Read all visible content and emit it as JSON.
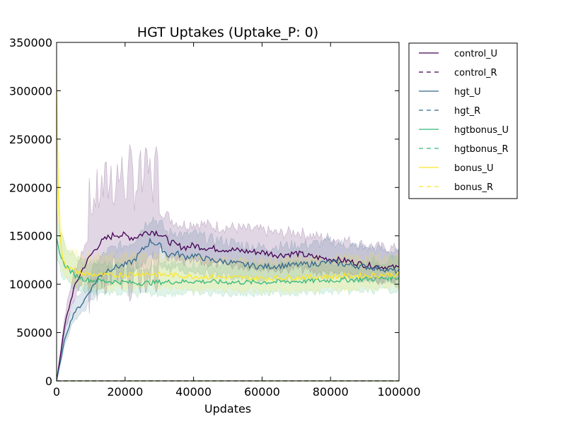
{
  "chart_data": {
    "type": "line",
    "title": "HGT Uptakes (Uptake_P: 0)",
    "xlabel": "Updates",
    "ylabel": "",
    "xlim": [
      0,
      100000
    ],
    "ylim": [
      0,
      350000
    ],
    "xticks": [
      0,
      20000,
      40000,
      60000,
      80000,
      100000
    ],
    "yticks": [
      0,
      50000,
      100000,
      150000,
      200000,
      250000,
      300000,
      350000
    ],
    "grid": false,
    "legend_position": "outside-right",
    "series": [
      {
        "name": "control_U",
        "color": "#440154",
        "dash": "solid",
        "x": [
          0,
          2500,
          5000,
          7500,
          10000,
          12500,
          15000,
          17500,
          20000,
          22500,
          25000,
          27500,
          30000,
          32500,
          35000,
          37500,
          40000,
          45000,
          50000,
          55000,
          60000,
          65000,
          70000,
          75000,
          80000,
          85000,
          90000,
          95000,
          100000
        ],
        "y": [
          0,
          60000,
          95000,
          115000,
          130000,
          142000,
          148000,
          152000,
          150000,
          148000,
          152000,
          155000,
          153000,
          145000,
          140000,
          138000,
          140000,
          137000,
          136000,
          134000,
          133000,
          130000,
          132000,
          128000,
          126000,
          124000,
          120000,
          118000,
          117000
        ]
      },
      {
        "name": "control_R",
        "color": "#440154",
        "dash": "dashed",
        "x": [
          0,
          100000
        ],
        "y": [
          0,
          0
        ]
      },
      {
        "name": "hgt_U",
        "color": "#31688e",
        "dash": "solid",
        "x": [
          0,
          2500,
          5000,
          7500,
          10000,
          12500,
          15000,
          17500,
          20000,
          22500,
          25000,
          27500,
          30000,
          32500,
          35000,
          37500,
          40000,
          45000,
          50000,
          55000,
          60000,
          65000,
          70000,
          75000,
          80000,
          85000,
          90000,
          95000,
          100000
        ],
        "y": [
          0,
          45000,
          70000,
          80000,
          95000,
          108000,
          115000,
          118000,
          120000,
          124000,
          135000,
          145000,
          140000,
          130000,
          132000,
          128000,
          130000,
          125000,
          123000,
          120000,
          118000,
          119000,
          120000,
          121000,
          123000,
          120000,
          118000,
          116000,
          113000
        ]
      },
      {
        "name": "hgt_R",
        "color": "#31688e",
        "dash": "dashed",
        "x": [
          0,
          100000
        ],
        "y": [
          0,
          0
        ]
      },
      {
        "name": "hgtbonus_U",
        "color": "#35b779",
        "dash": "solid",
        "x": [
          0,
          1000,
          2000,
          3000,
          5000,
          7500,
          10000,
          15000,
          20000,
          25000,
          30000,
          40000,
          50000,
          60000,
          70000,
          80000,
          90000,
          100000
        ],
        "y": [
          148000,
          130000,
          122000,
          118000,
          110000,
          106000,
          104000,
          103000,
          102000,
          101000,
          102000,
          103000,
          102000,
          102000,
          103000,
          104000,
          105000,
          107000
        ]
      },
      {
        "name": "hgtbonus_R",
        "color": "#35b779",
        "dash": "dashed",
        "x": [
          0,
          100000
        ],
        "y": [
          0,
          0
        ]
      },
      {
        "name": "bonus_U",
        "color": "#fde725",
        "dash": "solid",
        "x": [
          0,
          300,
          700,
          1200,
          2000,
          3000,
          5000,
          7500,
          10000,
          15000,
          20000,
          25000,
          30000,
          40000,
          50000,
          60000,
          70000,
          80000,
          90000,
          100000
        ],
        "y": [
          300000,
          220000,
          170000,
          140000,
          125000,
          118000,
          114000,
          111000,
          110000,
          109000,
          110000,
          111000,
          110000,
          108000,
          107000,
          106000,
          107000,
          108000,
          109000,
          110000
        ]
      },
      {
        "name": "bonus_R",
        "color": "#fde725",
        "dash": "dashed",
        "x": [
          0,
          100000
        ],
        "y": [
          0,
          0
        ]
      }
    ]
  }
}
